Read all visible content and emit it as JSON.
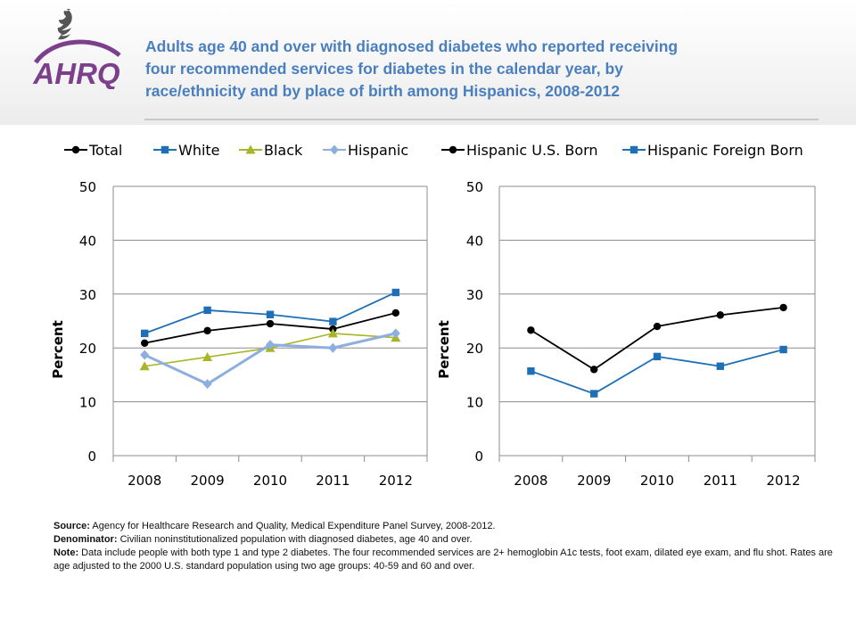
{
  "title_lines": [
    "Adults age 40 and over with diagnosed diabetes who reported receiving",
    "four recommended services for diabetes in the calendar year, by",
    "race/ethnicity and by place of birth among Hispanics, 2008-2012"
  ],
  "logo_text": "AHRQ",
  "colors": {
    "title": "#4a7fbf",
    "logo": "#7b3f8c",
    "total": "#000000",
    "white": "#1f6fb6",
    "black": "#a7b526",
    "hispanic": "#8eaee0",
    "us_born": "#000000",
    "foreign_born": "#1f6fb6"
  },
  "notes": {
    "source_label": "Source:",
    "source_text": "Agency for Healthcare Research and Quality, Medical Expenditure Panel Survey, 2008-2012.",
    "denominator_label": "Denominator:",
    "denominator_text": "Civilian noninstitutionalized population with diagnosed diabetes, age 40 and over.",
    "note_label": "Note:",
    "note_text": "Data include people with both type 1 and type 2 diabetes. The four recommended services are 2+ hemoglobin A1c tests, foot exam, dilated eye exam, and flu shot. Rates are age adjusted to the 2000 U.S. standard population using two age groups: 40-59 and 60 and over."
  },
  "chart_data": [
    {
      "type": "line",
      "categories": [
        "2008",
        "2009",
        "2010",
        "2011",
        "2012"
      ],
      "ylabel": "Percent",
      "ylim": [
        0,
        50
      ],
      "yticks": [
        0,
        10,
        20,
        30,
        40,
        50
      ],
      "grid": true,
      "legend": "top",
      "series": [
        {
          "name": "Total",
          "marker": "circle",
          "color": "#000000",
          "values": [
            20.9,
            23.2,
            24.5,
            23.5,
            26.5
          ]
        },
        {
          "name": "White",
          "marker": "square",
          "color": "#1f6fb6",
          "values": [
            22.7,
            27.0,
            26.2,
            24.9,
            30.3
          ]
        },
        {
          "name": "Black",
          "marker": "triangle",
          "color": "#a7b526",
          "values": [
            16.6,
            18.3,
            20.0,
            22.7,
            21.9
          ]
        },
        {
          "name": "Hispanic",
          "marker": "diamond",
          "color": "#8eaee0",
          "values": [
            18.7,
            13.3,
            20.6,
            20.0,
            22.7
          ]
        }
      ]
    },
    {
      "type": "line",
      "categories": [
        "2008",
        "2009",
        "2010",
        "2011",
        "2012"
      ],
      "ylabel": "Percent",
      "ylim": [
        0,
        50
      ],
      "yticks": [
        0,
        10,
        20,
        30,
        40,
        50
      ],
      "grid": true,
      "legend": "top",
      "series": [
        {
          "name": "Hispanic U.S. Born",
          "marker": "circle",
          "color": "#000000",
          "values": [
            23.3,
            16.0,
            24.0,
            26.1,
            27.5
          ]
        },
        {
          "name": "Hispanic Foreign Born",
          "marker": "square",
          "color": "#1f6fb6",
          "values": [
            15.7,
            11.5,
            18.4,
            16.6,
            19.7
          ]
        }
      ]
    }
  ]
}
